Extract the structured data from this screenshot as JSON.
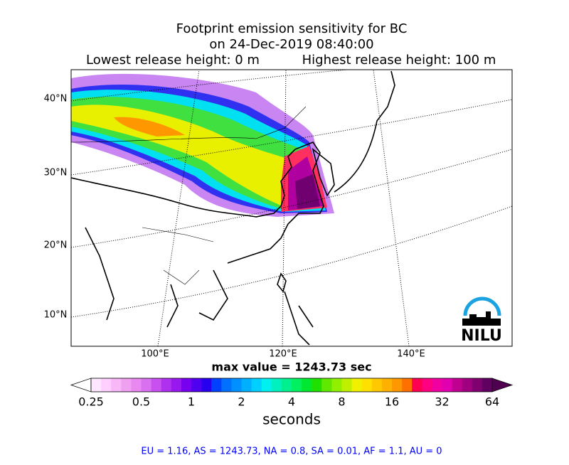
{
  "title": [
    "Footprint emission sensitivity for BC",
    "on 24-Dec-2019 08:40:00"
  ],
  "release": {
    "lowest": "Lowest release height: 0 m",
    "highest": "Highest release height: 100 m"
  },
  "map": {
    "lat_labels": [
      "40°N",
      "30°N",
      "20°N",
      "10°N"
    ],
    "lon_labels": [
      "100°E",
      "120°E",
      "140°E"
    ],
    "logo": "NILU"
  },
  "max_value": "max value = 1243.73 sec",
  "colorbar": {
    "ticks": [
      "0.25",
      "0.5",
      "1",
      "2",
      "4",
      "8",
      "16",
      "32",
      "64"
    ],
    "label": "seconds",
    "colors": [
      "#ffe8ff",
      "#ffd0ff",
      "#f8b8f8",
      "#f0a0f0",
      "#e888f0",
      "#d870f0",
      "#c850f0",
      "#b030f0",
      "#9818f0",
      "#7800f0",
      "#5000f0",
      "#2800f0",
      "#0040ff",
      "#0070ff",
      "#0090ff",
      "#00b0ff",
      "#00d0ff",
      "#00f0f0",
      "#00f0c0",
      "#00f090",
      "#00f060",
      "#00e830",
      "#20e000",
      "#60e800",
      "#90f000",
      "#c0f000",
      "#f0f000",
      "#ffe000",
      "#ffc800",
      "#ffb000",
      "#ff9800",
      "#ff7000",
      "#ff0050",
      "#ff0080",
      "#f000a0",
      "#e000b0",
      "#c00090",
      "#a00080",
      "#800070",
      "#600060"
    ]
  },
  "footer": "EU = 1.16,  AS = 1243.73,  NA = 0.8,  SA = 0.01,  AF = 1.1,  AU = 0"
}
